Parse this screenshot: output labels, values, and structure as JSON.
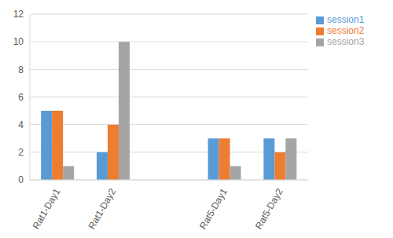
{
  "chart_data": {
    "type": "bar",
    "categories": [
      "Rat1-Day1",
      "Rat1-Day2",
      null,
      "Rat5-Day1",
      "Rat5-Day2"
    ],
    "series": [
      {
        "name": "session1",
        "color": "#5b9bd5",
        "values": [
          5,
          2,
          null,
          3,
          3
        ]
      },
      {
        "name": "session2",
        "color": "#ed7d31",
        "values": [
          5,
          4,
          null,
          3,
          2
        ]
      },
      {
        "name": "session3",
        "color": "#a5a5a5",
        "values": [
          1,
          10,
          null,
          1,
          3
        ]
      }
    ],
    "ylim": [
      0,
      12
    ],
    "yticks": [
      0,
      2,
      4,
      6,
      8,
      10,
      12
    ],
    "grid": true,
    "legend": "top-right"
  }
}
